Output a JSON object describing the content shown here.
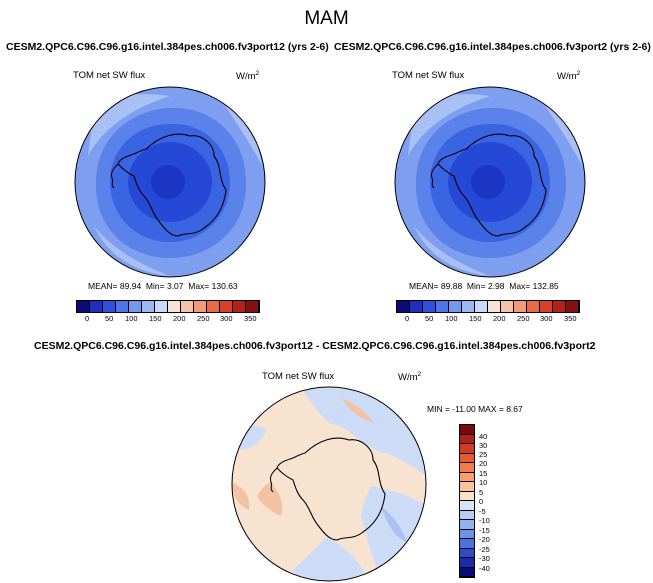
{
  "season": "MAM",
  "panels": [
    {
      "case": "CESM2.QPC6.C96.C96.g16.intel.384pes.ch006.fv3port12 (yrs 2-6)",
      "variable": "TOM net SW flux",
      "units_base": "W/m",
      "units_exp": "2",
      "mean": "89.94",
      "min": "3.07",
      "max": "130.63",
      "stats_mean_label": "MEAN=",
      "stats_min_label": "Min=",
      "stats_max_label": "Max="
    },
    {
      "case": "CESM2.QPC6.C96.C96.g16.intel.384pes.ch006.fv3port2 (yrs 2-6)",
      "variable": "TOM net SW flux",
      "units_base": "W/m",
      "units_exp": "2",
      "mean": "89.88",
      "min": "2.98",
      "max": "132.85",
      "stats_mean_label": "MEAN=",
      "stats_min_label": "Min=",
      "stats_max_label": "Max="
    }
  ],
  "diff_panel": {
    "title": "CESM2.QPC6.C96.C96.g16.intel.384pes.ch006.fv3port12 - CESM2.QPC6.C96.C96.g16.intel.384pes.ch006.fv3port2",
    "variable": "TOM net SW flux",
    "units_base": "W/m",
    "units_exp": "2",
    "stats": "MIN = -11.00 MAX =  8.67"
  },
  "colorbar_top": {
    "labels": [
      "0",
      "50",
      "100",
      "150",
      "200",
      "250",
      "300",
      "350"
    ],
    "colors": [
      "#0a0a7a",
      "#1e2fbf",
      "#2e50dd",
      "#4c76e8",
      "#7497ee",
      "#9cb8f3",
      "#c8d8f8",
      "#f7e3d5",
      "#f6c3a8",
      "#f29b78",
      "#e96a4a",
      "#d8402a",
      "#b5201a",
      "#851010"
    ]
  },
  "colorbar_diff": {
    "labels": [
      "40",
      "30",
      "25",
      "20",
      "15",
      "10",
      "5",
      "0",
      "-5",
      "-10",
      "-15",
      "-20",
      "-25",
      "-30",
      "-40"
    ],
    "colors": [
      "#7a0a0a",
      "#b0201a",
      "#d23a22",
      "#e65a32",
      "#f07c50",
      "#f6a070",
      "#f9c39a",
      "#fbe0c8",
      "#d6e4f8",
      "#b6cdf5",
      "#93b3f0",
      "#6d93e9",
      "#4c72df",
      "#2d4bcc",
      "#1a2aa8",
      "#0a0a78"
    ]
  },
  "map_colors": {
    "outer": "#7e9ff0",
    "ring1": "#5a82ea",
    "ring2": "#3a64e2",
    "ring3": "#2648d6",
    "core": "#1c36c4",
    "light_patch": "#a9c0f5",
    "diff_base": "#f8e2d0",
    "diff_blue": "#cddcf6",
    "diff_blue2": "#aac2f1",
    "diff_red": "#f3c2a2"
  }
}
